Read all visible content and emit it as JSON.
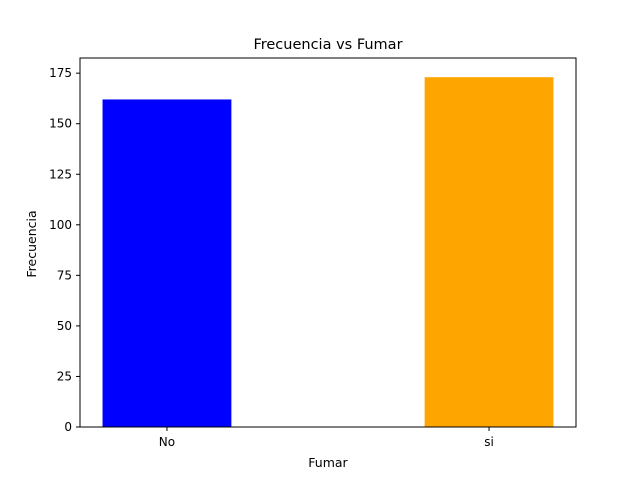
{
  "chart_data": {
    "type": "bar",
    "title": "Frecuencia vs Fumar",
    "xlabel": "Fumar",
    "ylabel": "Frecuencia",
    "categories": [
      "No",
      "si"
    ],
    "values": [
      162,
      173
    ],
    "colors": [
      "#0000ff",
      "#ffa500"
    ],
    "ylim": [
      0,
      182.5
    ],
    "yticks": [
      0,
      25,
      50,
      75,
      100,
      125,
      150,
      175
    ],
    "grid": false,
    "legend": "none"
  }
}
